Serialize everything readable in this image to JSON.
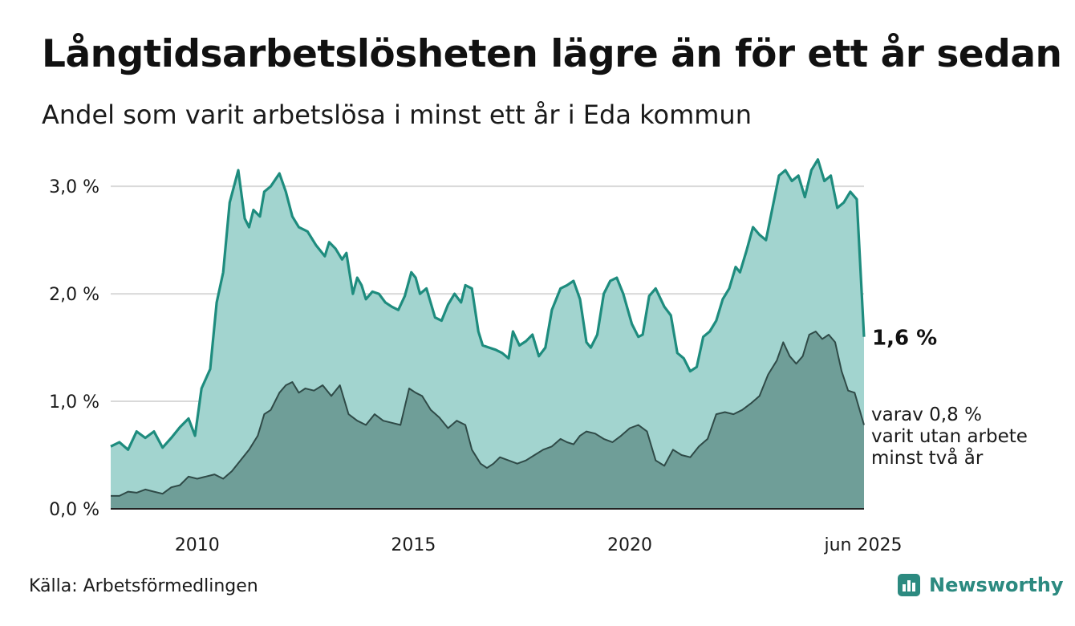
{
  "title": "Långtidsarbetslösheten lägre än för ett år sedan",
  "subtitle": "Andel som varit arbetslösa i minst ett år i Eda kommun",
  "source": "Källa: Arbetsförmedlingen",
  "brand": {
    "name": "Newsworthy",
    "icon": "newsworthy-logo-icon"
  },
  "colors": {
    "area_one_year": "#a2d4cf",
    "line_one_year": "#1e8c7e",
    "area_two_year": "#6f9e98",
    "line_two_year": "#2f4a47",
    "grid": "#d9d9d9",
    "brand": "#2c8a80"
  },
  "chart_data": {
    "type": "area",
    "x_tick_labels": [
      "2010",
      "2015",
      "2020",
      "jun 2025"
    ],
    "x_tick_values": [
      2010.0,
      2015.0,
      2020.0,
      2025.417
    ],
    "xlim": [
      2008.0,
      2025.417
    ],
    "y_tick_labels": [
      "0,0 %",
      "1,0 %",
      "2,0 %",
      "3,0 %"
    ],
    "y_tick_values": [
      0,
      1.0,
      2.0,
      3.0
    ],
    "ylim": [
      0,
      3.3
    ],
    "grid": true,
    "annotations": {
      "last_value_label": "1,6 %",
      "sub_label_lines": [
        "varav 0,8 %",
        "varit utan arbete",
        "minst två år"
      ]
    },
    "series": [
      {
        "key": "one_year",
        "points": [
          [
            2008.0,
            0.58
          ],
          [
            2008.2,
            0.62
          ],
          [
            2008.4,
            0.55
          ],
          [
            2008.6,
            0.72
          ],
          [
            2008.8,
            0.66
          ],
          [
            2009.0,
            0.72
          ],
          [
            2009.2,
            0.57
          ],
          [
            2009.4,
            0.66
          ],
          [
            2009.6,
            0.76
          ],
          [
            2009.8,
            0.84
          ],
          [
            2009.95,
            0.68
          ],
          [
            2010.1,
            1.12
          ],
          [
            2010.3,
            1.3
          ],
          [
            2010.45,
            1.92
          ],
          [
            2010.6,
            2.2
          ],
          [
            2010.75,
            2.85
          ],
          [
            2010.95,
            3.15
          ],
          [
            2011.1,
            2.7
          ],
          [
            2011.2,
            2.62
          ],
          [
            2011.3,
            2.78
          ],
          [
            2011.45,
            2.72
          ],
          [
            2011.55,
            2.95
          ],
          [
            2011.7,
            3.0
          ],
          [
            2011.9,
            3.12
          ],
          [
            2012.05,
            2.95
          ],
          [
            2012.2,
            2.72
          ],
          [
            2012.35,
            2.62
          ],
          [
            2012.55,
            2.58
          ],
          [
            2012.75,
            2.45
          ],
          [
            2012.95,
            2.35
          ],
          [
            2013.05,
            2.48
          ],
          [
            2013.2,
            2.42
          ],
          [
            2013.35,
            2.32
          ],
          [
            2013.45,
            2.38
          ],
          [
            2013.6,
            2.0
          ],
          [
            2013.7,
            2.15
          ],
          [
            2013.8,
            2.08
          ],
          [
            2013.9,
            1.95
          ],
          [
            2014.05,
            2.02
          ],
          [
            2014.2,
            2.0
          ],
          [
            2014.35,
            1.92
          ],
          [
            2014.5,
            1.88
          ],
          [
            2014.65,
            1.85
          ],
          [
            2014.8,
            1.98
          ],
          [
            2014.95,
            2.2
          ],
          [
            2015.05,
            2.15
          ],
          [
            2015.15,
            2.0
          ],
          [
            2015.3,
            2.05
          ],
          [
            2015.5,
            1.78
          ],
          [
            2015.65,
            1.75
          ],
          [
            2015.8,
            1.9
          ],
          [
            2015.95,
            2.0
          ],
          [
            2016.1,
            1.92
          ],
          [
            2016.2,
            2.08
          ],
          [
            2016.35,
            2.05
          ],
          [
            2016.5,
            1.65
          ],
          [
            2016.6,
            1.52
          ],
          [
            2016.75,
            1.5
          ],
          [
            2016.9,
            1.48
          ],
          [
            2017.05,
            1.45
          ],
          [
            2017.2,
            1.4
          ],
          [
            2017.3,
            1.65
          ],
          [
            2017.45,
            1.52
          ],
          [
            2017.6,
            1.56
          ],
          [
            2017.75,
            1.62
          ],
          [
            2017.9,
            1.42
          ],
          [
            2018.05,
            1.5
          ],
          [
            2018.2,
            1.85
          ],
          [
            2018.4,
            2.05
          ],
          [
            2018.55,
            2.08
          ],
          [
            2018.7,
            2.12
          ],
          [
            2018.85,
            1.95
          ],
          [
            2019.0,
            1.55
          ],
          [
            2019.1,
            1.5
          ],
          [
            2019.25,
            1.62
          ],
          [
            2019.4,
            2.0
          ],
          [
            2019.55,
            2.12
          ],
          [
            2019.7,
            2.15
          ],
          [
            2019.85,
            2.0
          ],
          [
            2020.05,
            1.72
          ],
          [
            2020.2,
            1.6
          ],
          [
            2020.3,
            1.62
          ],
          [
            2020.45,
            1.98
          ],
          [
            2020.6,
            2.05
          ],
          [
            2020.8,
            1.88
          ],
          [
            2020.95,
            1.8
          ],
          [
            2021.1,
            1.45
          ],
          [
            2021.25,
            1.4
          ],
          [
            2021.4,
            1.28
          ],
          [
            2021.55,
            1.32
          ],
          [
            2021.7,
            1.6
          ],
          [
            2021.85,
            1.65
          ],
          [
            2022.0,
            1.75
          ],
          [
            2022.15,
            1.95
          ],
          [
            2022.3,
            2.05
          ],
          [
            2022.45,
            2.25
          ],
          [
            2022.55,
            2.2
          ],
          [
            2022.7,
            2.4
          ],
          [
            2022.85,
            2.62
          ],
          [
            2023.0,
            2.55
          ],
          [
            2023.15,
            2.5
          ],
          [
            2023.3,
            2.8
          ],
          [
            2023.45,
            3.1
          ],
          [
            2023.6,
            3.15
          ],
          [
            2023.75,
            3.05
          ],
          [
            2023.9,
            3.1
          ],
          [
            2024.05,
            2.9
          ],
          [
            2024.2,
            3.15
          ],
          [
            2024.35,
            3.25
          ],
          [
            2024.5,
            3.05
          ],
          [
            2024.65,
            3.1
          ],
          [
            2024.8,
            2.8
          ],
          [
            2024.95,
            2.85
          ],
          [
            2025.1,
            2.95
          ],
          [
            2025.25,
            2.88
          ],
          [
            2025.417,
            1.6
          ]
        ]
      },
      {
        "key": "two_year",
        "points": [
          [
            2008.0,
            0.12
          ],
          [
            2008.2,
            0.12
          ],
          [
            2008.4,
            0.16
          ],
          [
            2008.6,
            0.15
          ],
          [
            2008.8,
            0.18
          ],
          [
            2009.0,
            0.16
          ],
          [
            2009.2,
            0.14
          ],
          [
            2009.4,
            0.2
          ],
          [
            2009.6,
            0.22
          ],
          [
            2009.8,
            0.3
          ],
          [
            2010.0,
            0.28
          ],
          [
            2010.2,
            0.3
          ],
          [
            2010.4,
            0.32
          ],
          [
            2010.6,
            0.28
          ],
          [
            2010.8,
            0.35
          ],
          [
            2011.0,
            0.45
          ],
          [
            2011.2,
            0.55
          ],
          [
            2011.4,
            0.68
          ],
          [
            2011.55,
            0.88
          ],
          [
            2011.7,
            0.92
          ],
          [
            2011.9,
            1.08
          ],
          [
            2012.05,
            1.15
          ],
          [
            2012.2,
            1.18
          ],
          [
            2012.35,
            1.08
          ],
          [
            2012.5,
            1.12
          ],
          [
            2012.7,
            1.1
          ],
          [
            2012.9,
            1.15
          ],
          [
            2013.1,
            1.05
          ],
          [
            2013.3,
            1.15
          ],
          [
            2013.5,
            0.88
          ],
          [
            2013.7,
            0.82
          ],
          [
            2013.9,
            0.78
          ],
          [
            2014.1,
            0.88
          ],
          [
            2014.3,
            0.82
          ],
          [
            2014.5,
            0.8
          ],
          [
            2014.7,
            0.78
          ],
          [
            2014.9,
            1.12
          ],
          [
            2015.05,
            1.08
          ],
          [
            2015.2,
            1.05
          ],
          [
            2015.4,
            0.92
          ],
          [
            2015.6,
            0.85
          ],
          [
            2015.8,
            0.75
          ],
          [
            2016.0,
            0.82
          ],
          [
            2016.2,
            0.78
          ],
          [
            2016.35,
            0.55
          ],
          [
            2016.55,
            0.42
          ],
          [
            2016.7,
            0.38
          ],
          [
            2016.85,
            0.42
          ],
          [
            2017.0,
            0.48
          ],
          [
            2017.2,
            0.45
          ],
          [
            2017.4,
            0.42
          ],
          [
            2017.6,
            0.45
          ],
          [
            2017.8,
            0.5
          ],
          [
            2018.0,
            0.55
          ],
          [
            2018.2,
            0.58
          ],
          [
            2018.4,
            0.65
          ],
          [
            2018.55,
            0.62
          ],
          [
            2018.7,
            0.6
          ],
          [
            2018.85,
            0.68
          ],
          [
            2019.0,
            0.72
          ],
          [
            2019.2,
            0.7
          ],
          [
            2019.4,
            0.65
          ],
          [
            2019.6,
            0.62
          ],
          [
            2019.8,
            0.68
          ],
          [
            2020.0,
            0.75
          ],
          [
            2020.2,
            0.78
          ],
          [
            2020.4,
            0.72
          ],
          [
            2020.6,
            0.45
          ],
          [
            2020.8,
            0.4
          ],
          [
            2021.0,
            0.55
          ],
          [
            2021.2,
            0.5
          ],
          [
            2021.4,
            0.48
          ],
          [
            2021.6,
            0.58
          ],
          [
            2021.8,
            0.65
          ],
          [
            2022.0,
            0.88
          ],
          [
            2022.2,
            0.9
          ],
          [
            2022.4,
            0.88
          ],
          [
            2022.6,
            0.92
          ],
          [
            2022.8,
            0.98
          ],
          [
            2023.0,
            1.05
          ],
          [
            2023.2,
            1.25
          ],
          [
            2023.4,
            1.38
          ],
          [
            2023.55,
            1.55
          ],
          [
            2023.7,
            1.42
          ],
          [
            2023.85,
            1.35
          ],
          [
            2024.0,
            1.42
          ],
          [
            2024.15,
            1.62
          ],
          [
            2024.3,
            1.65
          ],
          [
            2024.45,
            1.58
          ],
          [
            2024.6,
            1.62
          ],
          [
            2024.75,
            1.55
          ],
          [
            2024.9,
            1.28
          ],
          [
            2025.05,
            1.1
          ],
          [
            2025.2,
            1.08
          ],
          [
            2025.417,
            0.78
          ]
        ]
      }
    ]
  }
}
